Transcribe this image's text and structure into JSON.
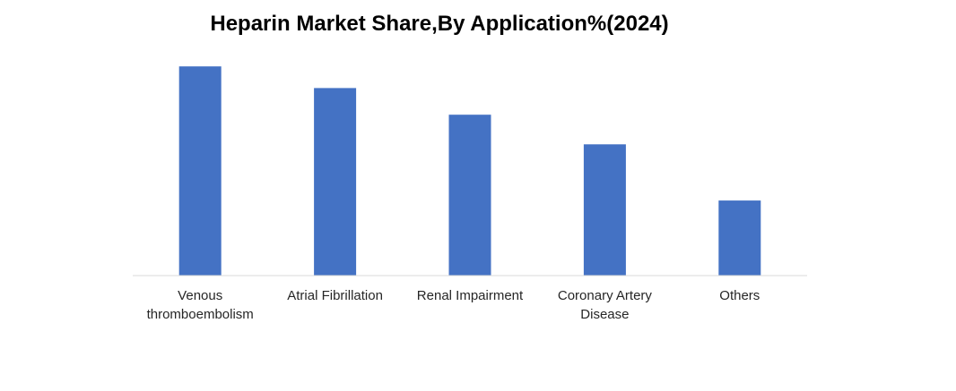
{
  "chart_data": {
    "type": "bar",
    "title": "Heparin Market Share,By Application%(2024)",
    "categories": [
      [
        "Venous",
        "thromboembolism"
      ],
      [
        "Atrial Fibrillation"
      ],
      [
        "Renal Impairment"
      ],
      [
        "Coronary Artery",
        "Disease"
      ],
      [
        "Others"
      ]
    ],
    "values": [
      29,
      26,
      22.3,
      18.2,
      10.4
    ],
    "ylim": [
      0,
      32
    ],
    "grid": false,
    "bar_color": "#4472C4",
    "axis_color": "#D9D9D9"
  }
}
